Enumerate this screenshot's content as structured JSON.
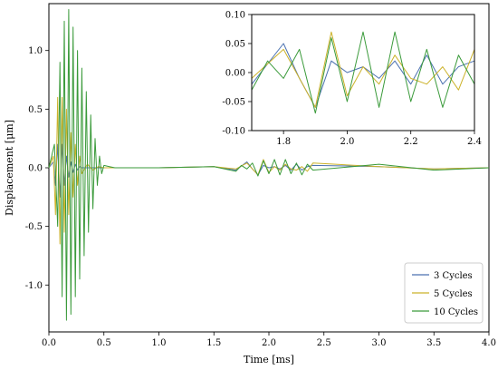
{
  "chart_data": {
    "type": "line",
    "xlabel": "Time [ms]",
    "ylabel": "Displacement [μm]",
    "xlim": [
      0.0,
      4.0
    ],
    "ylim": [
      -1.4,
      1.4
    ],
    "xticks": [
      "0.0",
      "0.5",
      "1.0",
      "1.5",
      "2.0",
      "2.5",
      "3.0",
      "3.5",
      "4.0"
    ],
    "yticks": [
      "-1.0",
      "-0.5",
      "0.0",
      "0.5",
      "1.0"
    ],
    "legend_position": "lower-right",
    "series": [
      {
        "name": "3 Cycles",
        "color": "#4c72b0",
        "x": [
          0.0,
          0.04,
          0.06,
          0.08,
          0.1,
          0.12,
          0.14,
          0.16,
          0.18,
          0.2,
          0.22,
          0.24,
          0.26,
          0.28,
          0.3,
          0.35,
          0.4,
          0.5,
          0.6,
          1.0,
          1.5,
          1.7,
          1.8,
          1.85,
          1.9,
          1.95,
          2.0,
          2.05,
          2.1,
          2.15,
          2.2,
          2.25,
          2.3,
          2.35,
          2.4,
          3.0,
          3.5,
          4.0
        ],
        "y": [
          0.0,
          0.05,
          -0.15,
          0.2,
          -0.25,
          0.2,
          -0.15,
          0.1,
          -0.08,
          0.05,
          -0.04,
          0.03,
          -0.02,
          0.01,
          0.0,
          0.0,
          0.0,
          0.0,
          0.0,
          0.0,
          0.01,
          -0.02,
          0.05,
          -0.01,
          -0.06,
          0.02,
          0.0,
          0.01,
          -0.01,
          0.02,
          -0.02,
          0.03,
          -0.02,
          0.01,
          0.02,
          0.01,
          -0.01,
          0.0
        ]
      },
      {
        "name": "5 Cycles",
        "color": "#ccb22a",
        "x": [
          0.0,
          0.04,
          0.06,
          0.08,
          0.1,
          0.12,
          0.14,
          0.16,
          0.18,
          0.2,
          0.22,
          0.24,
          0.26,
          0.28,
          0.3,
          0.35,
          0.4,
          0.45,
          0.5,
          0.6,
          1.0,
          1.5,
          1.7,
          1.8,
          1.85,
          1.9,
          1.95,
          2.0,
          2.05,
          2.1,
          2.15,
          2.2,
          2.25,
          2.3,
          2.35,
          2.4,
          3.0,
          3.5,
          4.0
        ],
        "y": [
          0.0,
          0.1,
          -0.4,
          0.6,
          -0.65,
          0.6,
          -0.55,
          0.5,
          -0.4,
          0.3,
          -0.25,
          0.2,
          -0.15,
          0.1,
          -0.05,
          0.03,
          -0.02,
          0.01,
          0.0,
          0.0,
          0.0,
          0.01,
          -0.01,
          0.04,
          -0.01,
          -0.06,
          0.07,
          -0.04,
          0.01,
          -0.02,
          0.03,
          -0.01,
          -0.02,
          0.01,
          -0.03,
          0.04,
          0.01,
          -0.01,
          0.0
        ]
      },
      {
        "name": "10 Cycles",
        "color": "#3a9a3a",
        "x": [
          0.0,
          0.05,
          0.08,
          0.1,
          0.12,
          0.14,
          0.16,
          0.18,
          0.2,
          0.22,
          0.24,
          0.26,
          0.28,
          0.3,
          0.32,
          0.34,
          0.36,
          0.38,
          0.4,
          0.42,
          0.44,
          0.46,
          0.48,
          0.5,
          0.55,
          0.6,
          1.0,
          1.5,
          1.7,
          1.75,
          1.8,
          1.85,
          1.9,
          1.95,
          2.0,
          2.05,
          2.1,
          2.15,
          2.2,
          2.25,
          2.3,
          2.35,
          2.4,
          3.0,
          3.5,
          4.0
        ],
        "y": [
          0.0,
          0.2,
          -0.5,
          0.9,
          -1.1,
          1.25,
          -1.3,
          1.35,
          -1.25,
          1.2,
          -1.1,
          1.0,
          -0.95,
          0.85,
          -0.75,
          0.65,
          -0.55,
          0.45,
          -0.35,
          0.25,
          -0.15,
          0.1,
          -0.05,
          0.02,
          0.01,
          0.0,
          0.0,
          0.01,
          -0.03,
          0.02,
          -0.01,
          0.04,
          -0.07,
          0.06,
          -0.05,
          0.07,
          -0.06,
          0.07,
          -0.05,
          0.04,
          -0.06,
          0.03,
          -0.02,
          0.03,
          -0.02,
          0.0
        ]
      }
    ]
  },
  "inset": {
    "xlim": [
      1.7,
      2.4
    ],
    "ylim": [
      -0.1,
      0.1
    ],
    "xticks": [
      "1.8",
      "2.0",
      "2.2",
      "2.4"
    ],
    "yticks": [
      "-0.10",
      "-0.05",
      "0.00",
      "0.05",
      "0.10"
    ]
  }
}
